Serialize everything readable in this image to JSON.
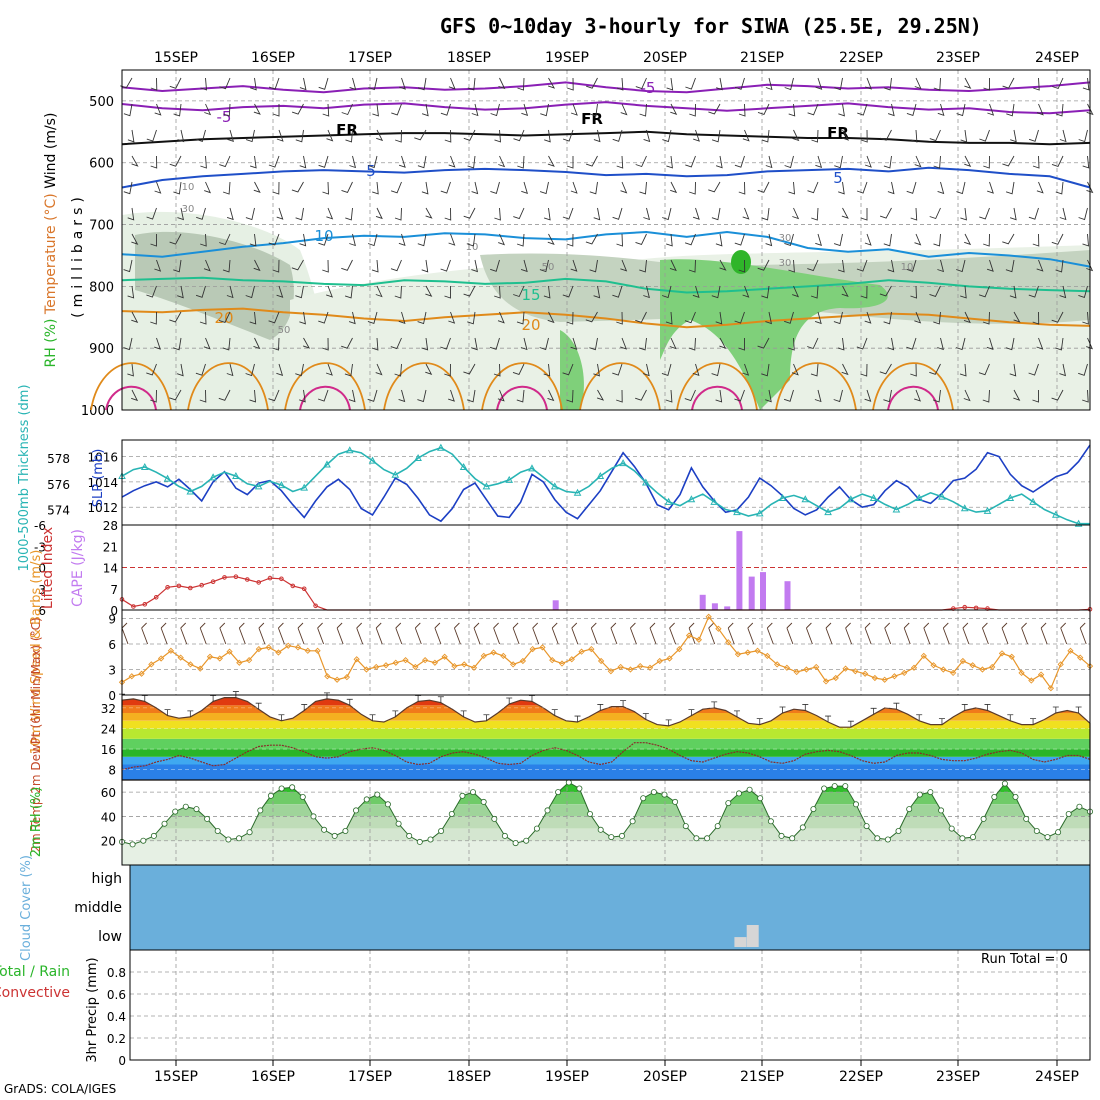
{
  "title": "GFS 0~10day 3-hourly for SIWA (25.5E, 29.25N)",
  "credit": "GrADS: COLA/IGES",
  "run_total": "Run Total = 0",
  "dates": [
    "15SEP",
    "16SEP",
    "17SEP",
    "18SEP",
    "19SEP",
    "20SEP",
    "21SEP",
    "22SEP",
    "23SEP",
    "24SEP"
  ],
  "colors": {
    "frame": "#000000",
    "grid": "#9a9a9a",
    "slp": "#1c3fc4",
    "thickness": "#28b4b4",
    "lifted": "#cc3333",
    "cape": "#c27bf0",
    "wind": "#e8962a",
    "barb": "#5a3a2a",
    "rh": "#2ab52a",
    "cloud": "#6aafdb",
    "temp_line": "#5a3a2a",
    "dewpt_line": "#8a2a2a"
  },
  "chart_data": [
    {
      "type": "contour",
      "panel": "upper-air",
      "ylabel_parts": [
        "RH (%)",
        "Temperature (°C)",
        "Wind (m/s)"
      ],
      "ylabel_axis": "(millibars)",
      "yticks": [
        "500",
        "600",
        "700",
        "800",
        "900",
        "1000"
      ],
      "ylim": [
        1000,
        450
      ],
      "contour_labels": [
        "-5",
        "-5",
        "FR",
        "FR",
        "FR",
        "5",
        "5",
        "10",
        "15",
        "20",
        "20",
        "10",
        "30",
        "50",
        "10",
        "30",
        "50",
        "10",
        "30"
      ],
      "isotherms": [
        {
          "name": "-5",
          "color": "#8a1fb5",
          "levels": [
            478,
            484,
            480,
            476,
            482,
            486,
            480,
            478,
            482,
            480,
            476,
            470,
            478,
            484,
            486,
            480,
            474,
            476,
            480,
            478,
            482,
            484,
            480,
            476,
            470
          ]
        },
        {
          "name": "-5b",
          "color": "#8a1fb5",
          "levels": [
            505,
            512,
            515,
            510,
            508,
            512,
            506,
            504,
            510,
            514,
            512,
            506,
            502,
            508,
            512,
            516,
            512,
            508,
            504,
            510,
            514,
            512,
            518,
            520,
            515
          ]
        },
        {
          "name": "FR",
          "color": "#111111",
          "levels": [
            570,
            566,
            562,
            560,
            558,
            556,
            554,
            552,
            552,
            554,
            556,
            554,
            552,
            550,
            554,
            556,
            558,
            560,
            560,
            562,
            566,
            568,
            568,
            570,
            568
          ]
        },
        {
          "name": "5",
          "color": "#1f4fc8",
          "levels": [
            640,
            628,
            622,
            618,
            614,
            612,
            614,
            616,
            612,
            610,
            612,
            615,
            620,
            618,
            622,
            620,
            614,
            612,
            610,
            614,
            608,
            612,
            618,
            622,
            640
          ]
        },
        {
          "name": "10",
          "color": "#1a8fd8",
          "levels": [
            748,
            752,
            744,
            736,
            730,
            722,
            718,
            720,
            714,
            716,
            722,
            724,
            716,
            712,
            720,
            712,
            720,
            738,
            744,
            740,
            752,
            746,
            750,
            756,
            768
          ]
        },
        {
          "name": "15",
          "color": "#1fbf8f",
          "levels": [
            790,
            788,
            786,
            790,
            792,
            796,
            798,
            790,
            792,
            796,
            794,
            788,
            792,
            804,
            810,
            808,
            804,
            800,
            796,
            790,
            794,
            800,
            804,
            806,
            808
          ]
        },
        {
          "name": "20",
          "color": "#e08a1a",
          "levels": [
            840,
            842,
            838,
            836,
            842,
            846,
            852,
            856,
            850,
            846,
            842,
            846,
            852,
            860,
            866,
            862,
            856,
            852,
            848,
            844,
            846,
            852,
            858,
            862,
            864
          ]
        }
      ],
      "x_days": [
        "15SEP",
        "16SEP",
        "17SEP",
        "18SEP",
        "19SEP",
        "20SEP",
        "21SEP",
        "22SEP",
        "23SEP",
        "24SEP"
      ]
    },
    {
      "type": "line",
      "panel": "slp-thickness",
      "ylabel_left": "1000-500mb Thickness (dm)",
      "ylabel_right": "SLP (mb)",
      "yticks_left": [
        574,
        576,
        578
      ],
      "yticks_right": [
        1012,
        1014,
        1016
      ],
      "ylim_left": [
        572.8,
        579.4
      ],
      "ylim_right": [
        1010.6,
        1017.3
      ],
      "series": [
        {
          "name": "SLP (mb)",
          "values": [
            1012.8,
            1013.3,
            1013.7,
            1014.0,
            1013.6,
            1014.2,
            1013.4,
            1012.5,
            1014.0,
            1014.8,
            1013.5,
            1013.0,
            1013.9,
            1014.1,
            1013.3,
            1012.2,
            1011.2,
            1012.5,
            1013.6,
            1014.2,
            1013.4,
            1011.9,
            1011.4,
            1012.8,
            1014.3,
            1013.8,
            1012.7,
            1011.4,
            1010.9,
            1011.9,
            1013.4,
            1013.9,
            1012.6,
            1011.3,
            1011.2,
            1012.4,
            1014.6,
            1014.0,
            1012.6,
            1011.6,
            1011.1,
            1012.2,
            1013.3,
            1014.8,
            1016.3,
            1015.2,
            1013.9,
            1012.2,
            1011.8,
            1013.0,
            1015.1,
            1013.6,
            1012.5,
            1011.6,
            1011.8,
            1012.8,
            1014.3,
            1013.7,
            1012.9,
            1011.9,
            1011.4,
            1011.8,
            1012.8,
            1013.6,
            1012.6,
            1012.0,
            1012.2,
            1013.3,
            1014.1,
            1013.6,
            1012.6,
            1012.3,
            1013.1,
            1014.1,
            1014.3,
            1015.0,
            1016.3,
            1016.0,
            1014.6,
            1013.7,
            1013.2,
            1013.8,
            1014.4,
            1014.7,
            1015.6,
            1016.9
          ]
        },
        {
          "name": "1000-500mb Thickness (dm)",
          "values": [
            576.6,
            577.1,
            577.3,
            576.9,
            576.4,
            575.8,
            575.4,
            575.8,
            576.5,
            576.9,
            576.6,
            576.0,
            575.8,
            576.2,
            575.9,
            575.4,
            575.7,
            576.6,
            577.5,
            578.3,
            578.6,
            578.4,
            577.8,
            577.1,
            576.7,
            577.2,
            578.0,
            578.5,
            578.8,
            578.3,
            577.3,
            576.4,
            575.8,
            576.0,
            576.3,
            576.9,
            577.2,
            576.5,
            575.8,
            575.4,
            575.3,
            575.8,
            576.6,
            577.2,
            577.6,
            577.0,
            576.1,
            575.3,
            574.6,
            574.3,
            574.8,
            575.2,
            574.6,
            574.0,
            573.8,
            573.5,
            573.7,
            574.4,
            574.9,
            575.1,
            574.8,
            574.3,
            573.8,
            574.1,
            574.8,
            575.2,
            574.9,
            574.4,
            574.0,
            574.4,
            574.9,
            575.3,
            575.0,
            574.6,
            574.1,
            573.8,
            573.9,
            574.4,
            574.9,
            575.2,
            574.6,
            574.0,
            573.6,
            573.2,
            572.9,
            572.9
          ]
        }
      ]
    },
    {
      "type": "bar",
      "panel": "lifted-cape",
      "ylabel_left": "Lifted Index",
      "ylabel_right": "CAPE (J/kg)",
      "yticks_left": [
        -6,
        -3,
        0,
        3,
        6
      ],
      "yticks_right": [
        0,
        7,
        14,
        21,
        28
      ],
      "ylim_cape": [
        0,
        28
      ],
      "series": [
        {
          "name": "Lifted Index",
          "values": [
            4.5,
            5.5,
            5.2,
            4.2,
            2.8,
            2.6,
            2.9,
            2.5,
            2.0,
            1.4,
            1.3,
            1.7,
            2.1,
            1.5,
            1.6,
            2.6,
            3.0,
            5.4,
            6,
            6,
            6,
            6,
            6,
            6,
            6,
            6,
            6,
            6,
            6,
            6,
            6,
            6,
            6,
            6,
            6,
            6,
            6,
            6,
            6,
            6,
            6,
            6,
            6,
            6,
            6,
            6,
            6,
            6,
            6,
            6,
            6,
            6,
            6,
            6,
            6,
            6,
            6,
            6,
            6,
            6,
            6,
            6,
            6,
            6,
            6,
            6,
            6,
            6,
            6,
            6,
            6,
            6,
            6,
            5.8,
            5.6,
            5.7,
            5.8,
            6,
            6,
            6,
            6,
            6,
            6,
            6,
            6,
            5.9
          ]
        },
        {
          "name": "CAPE (J/kg)",
          "bars": [
            {
              "x": "18SEP 21Z",
              "value": 3.2
            },
            {
              "x": "20SEP 09Z",
              "value": 5.0
            },
            {
              "x": "20SEP 12Z",
              "value": 2.2
            },
            {
              "x": "20SEP 15Z",
              "value": 1.2
            },
            {
              "x": "20SEP 18Z",
              "value": 26.0
            },
            {
              "x": "20SEP 21Z",
              "value": 11.0
            },
            {
              "x": "21SEP 00Z",
              "value": 12.5
            },
            {
              "x": "21SEP 06Z",
              "value": 9.5
            }
          ]
        }
      ]
    },
    {
      "type": "line",
      "panel": "wind-10m",
      "ylabel": "10m Wind Speed & Barbs (m/s)",
      "yticks": [
        0,
        3,
        6,
        9
      ],
      "ylim": [
        0,
        10
      ],
      "series": [
        {
          "name": "Speed",
          "values": [
            1.5,
            2.2,
            2.5,
            3.6,
            4.3,
            5.2,
            4.4,
            3.6,
            3.1,
            4.5,
            4.3,
            5.1,
            3.8,
            4.1,
            5.4,
            5.6,
            5.0,
            5.8,
            5.6,
            5.2,
            5.2,
            2.2,
            1.8,
            2.1,
            4.2,
            3.0,
            3.3,
            3.5,
            3.8,
            4.1,
            3.3,
            4.1,
            3.8,
            4.5,
            3.4,
            3.6,
            3.2,
            4.6,
            5.0,
            4.6,
            3.6,
            4.0,
            5.4,
            5.6,
            4.1,
            3.7,
            4.2,
            5.1,
            5.4,
            4.0,
            2.8,
            3.3,
            3.0,
            3.4,
            3.2,
            4.0,
            4.3,
            5.4,
            7.0,
            6.5,
            9.2,
            7.8,
            6.2,
            4.8,
            5.0,
            5.2,
            4.6,
            3.6,
            3.2,
            2.7,
            3.0,
            3.3,
            1.6,
            2.0,
            3.1,
            2.8,
            2.5,
            2.0,
            1.8,
            2.2,
            2.6,
            3.2,
            4.6,
            3.5,
            3.0,
            2.6,
            4.0,
            3.5,
            3.0,
            3.3,
            4.9,
            4.5,
            2.6,
            1.7,
            2.4,
            0.8,
            3.6,
            5.2,
            4.4,
            3.4
          ]
        }
      ]
    },
    {
      "type": "area",
      "panel": "temp-dewpt",
      "ylabel": "2m Temp 2m DewPt (6hr Min/Max) (°C)",
      "yticks": [
        8,
        16,
        24,
        32
      ],
      "ylim": [
        4,
        37
      ],
      "series": [
        {
          "name": "2m Temp",
          "values": [
            35,
            35.5,
            34.5,
            32,
            29,
            28,
            28.5,
            31,
            34.5,
            36,
            36,
            34.5,
            31.5,
            28.5,
            27,
            28,
            31,
            34.5,
            35.5,
            35,
            33,
            29.5,
            27,
            26.5,
            28.5,
            32,
            34.5,
            35,
            34,
            31.5,
            28.5,
            26.5,
            27,
            30,
            33.5,
            35,
            34.5,
            32,
            29,
            27,
            26.5,
            28.5,
            31,
            32.5,
            32.5,
            30.5,
            27.5,
            25.5,
            25,
            26.5,
            29,
            31.5,
            32,
            31,
            28.5,
            26,
            25.5,
            27,
            30,
            31.5,
            31,
            29,
            26.5,
            24.5,
            24.5,
            27,
            29.5,
            32,
            31.5,
            29.5,
            27,
            25.5,
            25.5,
            28.5,
            31,
            32,
            31,
            29,
            27,
            25.5,
            25.5,
            27.5,
            30,
            31,
            30,
            26
          ]
        },
        {
          "name": "2m DewPt",
          "values": [
            8,
            9,
            9.5,
            11,
            12,
            13.5,
            12.5,
            11,
            9.5,
            10,
            12.5,
            15,
            17,
            17.5,
            17.5,
            16.5,
            15,
            13,
            12.5,
            13,
            15,
            16,
            16.5,
            15.5,
            13.5,
            11,
            10,
            10.5,
            13,
            14.5,
            15,
            14,
            12.5,
            10.5,
            10,
            10.5,
            13.5,
            15.5,
            16.5,
            15.5,
            13.5,
            11,
            10,
            11,
            15,
            18.5,
            18.5,
            17.5,
            16,
            13.5,
            11.5,
            11,
            12.5,
            14,
            15,
            14.5,
            13,
            11,
            10.5,
            11.5,
            14,
            15,
            15.5,
            15,
            13.5,
            11.5,
            10.5,
            11,
            13.5,
            14.5,
            14.5,
            13.5,
            12,
            11.5,
            11.5,
            12.5,
            14,
            15,
            15.5,
            14.5,
            12,
            11,
            12,
            13.5,
            13.5,
            12
          ]
        }
      ]
    },
    {
      "type": "area",
      "panel": "rh-2m",
      "ylabel": "2m RH (%)",
      "yticks": [
        20,
        40,
        60
      ],
      "ylim": [
        0,
        70
      ],
      "series": [
        {
          "name": "2m RH",
          "values": [
            19,
            17,
            20,
            24,
            34,
            44,
            48,
            46,
            38,
            28,
            21,
            22,
            27,
            45,
            57,
            63,
            64,
            56,
            40,
            29,
            24,
            28,
            45,
            54,
            58,
            50,
            34,
            24,
            19,
            21,
            28,
            42,
            57,
            60,
            52,
            38,
            24,
            18,
            20,
            30,
            45,
            60,
            68,
            63,
            42,
            29,
            23,
            24,
            36,
            55,
            60,
            58,
            52,
            32,
            22,
            22,
            32,
            51,
            59,
            62,
            55,
            36,
            24,
            22,
            31,
            46,
            63,
            65,
            65,
            50,
            32,
            22,
            21,
            28,
            46,
            58,
            60,
            45,
            30,
            22,
            23,
            38,
            56,
            67,
            56,
            38,
            28,
            23,
            27,
            42,
            48,
            44
          ]
        }
      ]
    },
    {
      "type": "bar",
      "panel": "cloud-cover",
      "ylabel": "Cloud Cover (%)",
      "levels": [
        "high",
        "middle",
        "low"
      ],
      "low_cloud_bars": [
        {
          "x": "20SEP 18Z",
          "value": 45
        },
        {
          "x": "20SEP 21Z",
          "value": 100
        }
      ]
    },
    {
      "type": "bar",
      "panel": "precip",
      "ylabel": "3hr Precip (mm)",
      "legend": [
        "Total / Rain",
        "Convective"
      ],
      "yticks": [
        "0",
        "0.2",
        "0.4",
        "0.6",
        "0.8"
      ],
      "ylim": [
        0,
        1
      ],
      "values": []
    }
  ]
}
